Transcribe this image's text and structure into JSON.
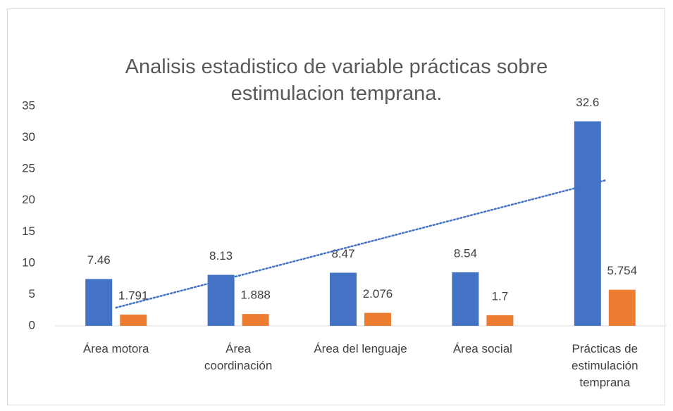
{
  "chart_data": {
    "type": "bar",
    "title": "Analisis estadistico de variable prácticas sobre estimulacion temprana.",
    "categories": [
      "Área motora",
      "Área coordinación",
      "Área del lenguaje",
      "Área social",
      "Prácticas de estimulación temprana"
    ],
    "series": [
      {
        "color": "#4472c4",
        "values": [
          7.46,
          8.13,
          8.47,
          8.54,
          32.6
        ],
        "trendline": "linear"
      },
      {
        "color": "#ed7d31",
        "values": [
          1.791,
          1.888,
          2.076,
          1.7,
          5.754
        ]
      }
    ],
    "ylim": [
      0,
      35
    ],
    "yticks": [
      0,
      5,
      10,
      15,
      20,
      25,
      30,
      35
    ],
    "grid": false
  }
}
